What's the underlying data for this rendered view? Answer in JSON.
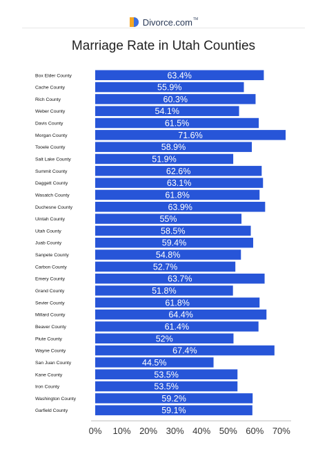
{
  "brand": {
    "name": "Divorce.com",
    "tm": "TM"
  },
  "chart_data": {
    "type": "bar",
    "orientation": "horizontal",
    "title": "Marriage Rate in Utah Counties",
    "categories": [
      "Box Elder County",
      "Cache County",
      "Rich County",
      "Weber County",
      "Davis County",
      "Morgan County",
      "Tooele County",
      "Salt Lake County",
      "Summit County",
      "Daggett County",
      "Wasatch County",
      "Duchesne County",
      "Uintah County",
      "Utah County",
      "Juab County",
      "Sanpete County",
      "Carbon County",
      "Emery County",
      "Grand County",
      "Sevier County",
      "Millard County",
      "Beaver County",
      "Piute County",
      "Wayne County",
      "San Juan County",
      "Kane County",
      "Iron County",
      "Washington County",
      "Garfield County"
    ],
    "values": [
      63.4,
      55.9,
      60.3,
      54.1,
      61.5,
      71.6,
      58.9,
      51.9,
      62.6,
      63.1,
      61.8,
      63.9,
      55,
      58.5,
      59.4,
      54.8,
      52.7,
      63.7,
      51.8,
      61.8,
      64.4,
      61.4,
      52,
      67.4,
      44.5,
      53.5,
      53.5,
      59.2,
      59.1
    ],
    "value_labels": [
      "63.4%",
      "55.9%",
      "60.3%",
      "54.1%",
      "61.5%",
      "71.6%",
      "58.9%",
      "51.9%",
      "62.6%",
      "63.1%",
      "61.8%",
      "63.9%",
      "55%",
      "58.5%",
      "59.4%",
      "54.8%",
      "52.7%",
      "63.7%",
      "51.8%",
      "61.8%",
      "64.4%",
      "61.4%",
      "52%",
      "67.4%",
      "44.5%",
      "53.5%",
      "53.5%",
      "59.2%",
      "59.1%"
    ],
    "xlim": [
      0,
      70
    ],
    "xticks": [
      0,
      10,
      20,
      30,
      40,
      50,
      60,
      70
    ],
    "xtick_labels": [
      "0%",
      "10%",
      "20%",
      "30%",
      "40%",
      "50%",
      "60%",
      "70%"
    ],
    "bar_color": "#2755d8",
    "label_color": "#ffffff",
    "grid": false,
    "legend": "none"
  }
}
